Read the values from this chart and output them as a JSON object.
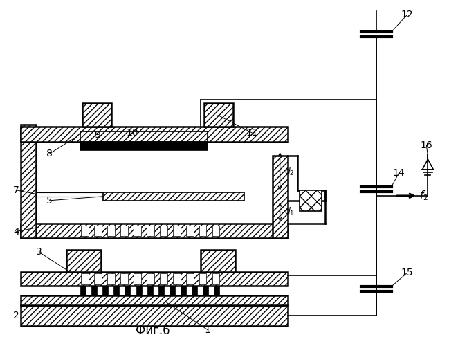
{
  "bg_color": "#ffffff",
  "title": "Фиг.6",
  "lw": 1.2,
  "lw2": 1.8
}
